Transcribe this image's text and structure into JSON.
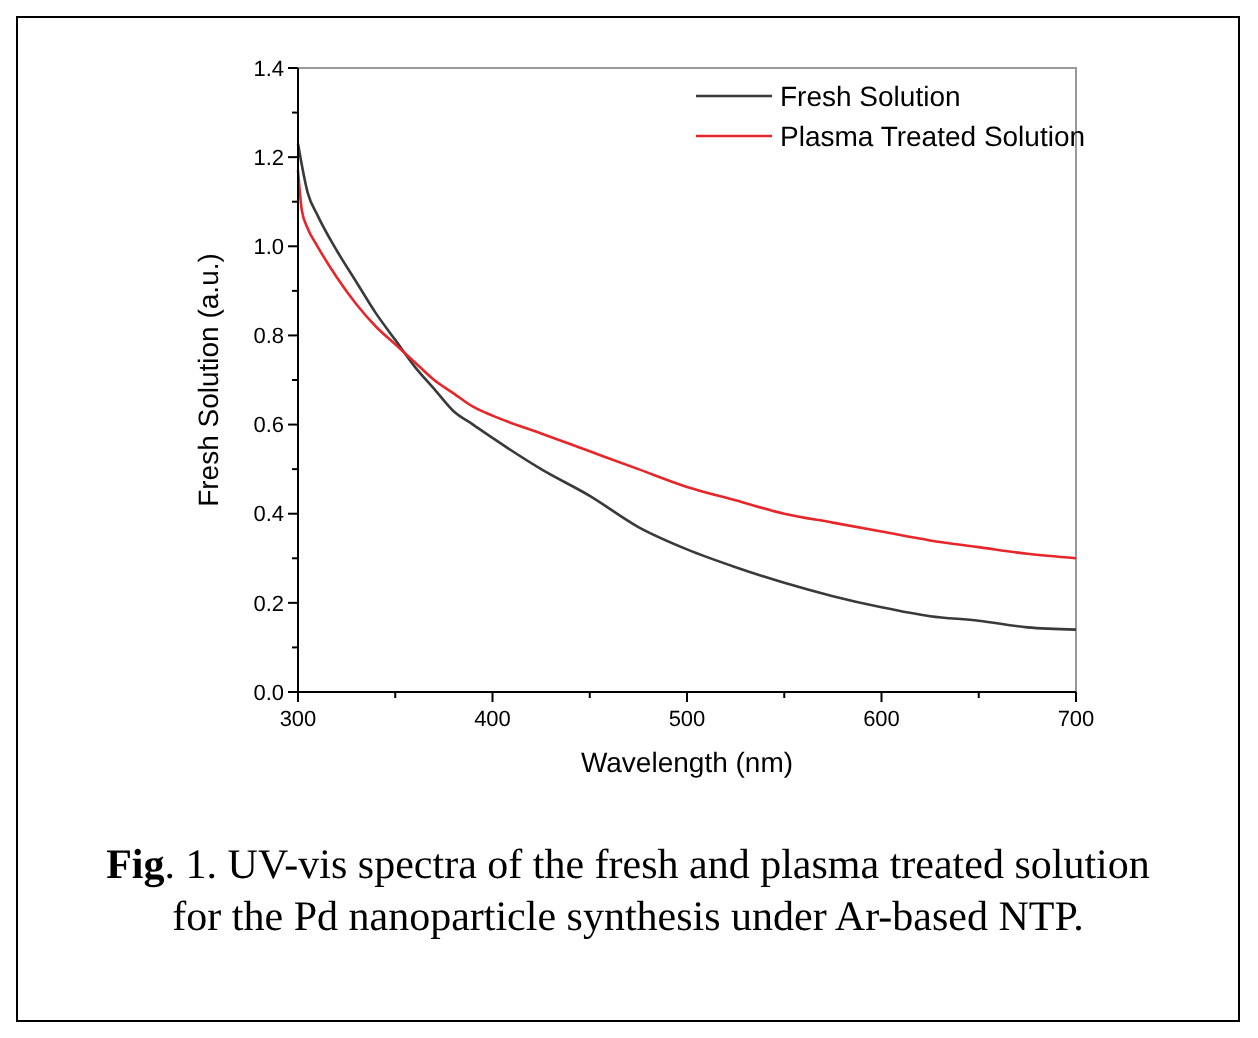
{
  "chart_data": {
    "type": "line",
    "xlabel": "Wavelength (nm)",
    "ylabel": "Fresh Solution (a.u.)",
    "xlim": [
      300,
      700
    ],
    "xticks": [
      300,
      400,
      500,
      600,
      700
    ],
    "ylim": [
      0,
      1.4
    ],
    "yticks": [
      {
        "value": 0,
        "label": "0.0"
      },
      0.2,
      0.4,
      0.6,
      0.8,
      {
        "value": 1,
        "label": "1.0"
      },
      1.2,
      1.4
    ],
    "legend": "top right",
    "grid": false,
    "marker": "none",
    "line_style": "solid",
    "annotations": [
      "Fig. 1. UV-vis spectra of the fresh and plasma treated solution for the Pd nanoparticle synthesis under Ar-based NTP."
    ],
    "series": [
      {
        "name": "Fresh Solution",
        "color": "#3a3a3a",
        "x": [
          300,
          305,
          310,
          320,
          330,
          340,
          350,
          360,
          370,
          380,
          390,
          400,
          425,
          450,
          475,
          500,
          525,
          550,
          575,
          600,
          625,
          650,
          675,
          700
        ],
        "values": [
          1.23,
          1.12,
          1.07,
          0.99,
          0.92,
          0.85,
          0.79,
          0.73,
          0.68,
          0.63,
          0.6,
          0.57,
          0.5,
          0.44,
          0.37,
          0.32,
          0.28,
          0.245,
          0.215,
          0.19,
          0.17,
          0.16,
          0.145,
          0.14
        ]
      },
      {
        "name": "Plasma Treated Solution",
        "color": "#e8262a",
        "x": [
          300,
          302,
          305,
          310,
          320,
          330,
          340,
          350,
          360,
          370,
          380,
          390,
          400,
          425,
          450,
          475,
          500,
          525,
          550,
          575,
          600,
          625,
          650,
          675,
          700
        ],
        "values": [
          1.17,
          1.08,
          1.04,
          1.0,
          0.93,
          0.87,
          0.82,
          0.78,
          0.74,
          0.7,
          0.67,
          0.64,
          0.62,
          0.58,
          0.54,
          0.5,
          0.46,
          0.43,
          0.4,
          0.38,
          0.36,
          0.34,
          0.325,
          0.31,
          0.3
        ]
      }
    ]
  }
}
